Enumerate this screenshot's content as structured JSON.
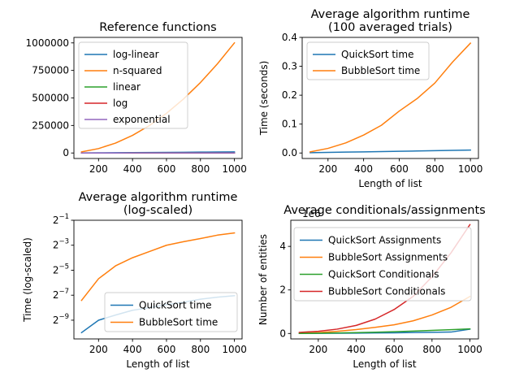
{
  "chart_data": [
    {
      "type": "line",
      "title": "Reference functions",
      "xlabel": "",
      "ylabel": "",
      "xlim": [
        55,
        1045
      ],
      "ylim": [
        -50000,
        1050000
      ],
      "xticks": [
        200,
        400,
        600,
        800,
        1000
      ],
      "xtick_labels": [
        "200",
        "400",
        "600",
        "800",
        "1000"
      ],
      "yticks": [
        0,
        250000,
        500000,
        750000,
        1000000
      ],
      "ytick_labels": [
        "0",
        "250000",
        "500000",
        "750000",
        "1000000"
      ],
      "legend": "top-left",
      "x": [
        100,
        200,
        300,
        400,
        500,
        600,
        700,
        800,
        900,
        1000
      ],
      "series": [
        {
          "name": "log-linear",
          "color": "#1f77b4",
          "values": [
            664,
            1529,
            2469,
            3458,
            4483,
            5537,
            6616,
            7715,
            8832,
            9966
          ]
        },
        {
          "name": "n-squared",
          "color": "#ff7f0e",
          "values": [
            10000,
            40000,
            90000,
            160000,
            250000,
            360000,
            490000,
            640000,
            810000,
            1000000
          ]
        },
        {
          "name": "linear",
          "color": "#2ca02c",
          "values": [
            100,
            200,
            300,
            400,
            500,
            600,
            700,
            800,
            900,
            1000
          ]
        },
        {
          "name": "log",
          "color": "#d62728",
          "values": [
            6.6,
            7.6,
            8.2,
            8.6,
            9.0,
            9.2,
            9.5,
            9.6,
            9.8,
            10.0
          ]
        },
        {
          "name": "exponential",
          "color": "#9467bd",
          "values": [
            100,
            200,
            300,
            400,
            500,
            600,
            700,
            800,
            900,
            1000
          ]
        }
      ]
    },
    {
      "type": "line",
      "title": "Average algorithm runtime\n(100 averaged trials)",
      "xlabel": "Length of list",
      "ylabel": "Time (seconds)",
      "xlim": [
        55,
        1045
      ],
      "ylim": [
        -0.019,
        0.4
      ],
      "xticks": [
        200,
        400,
        600,
        800,
        1000
      ],
      "xtick_labels": [
        "200",
        "400",
        "600",
        "800",
        "1000"
      ],
      "yticks": [
        0.0,
        0.1,
        0.2,
        0.3,
        0.4
      ],
      "ytick_labels": [
        "0.0",
        "0.1",
        "0.2",
        "0.3",
        "0.4"
      ],
      "legend": "top-left",
      "x": [
        100,
        200,
        300,
        400,
        500,
        600,
        700,
        800,
        900,
        1000
      ],
      "series": [
        {
          "name": "QuickSort time",
          "color": "#1f77b4",
          "values": [
            0.001,
            0.002,
            0.003,
            0.004,
            0.005,
            0.006,
            0.007,
            0.008,
            0.009,
            0.01
          ]
        },
        {
          "name": "BubbleSort time",
          "color": "#ff7f0e",
          "values": [
            0.004,
            0.016,
            0.035,
            0.062,
            0.096,
            0.145,
            0.188,
            0.242,
            0.315,
            0.38
          ]
        }
      ]
    },
    {
      "type": "line",
      "title": "Average algorithm runtime\n(log-scaled)",
      "xlabel": "Length of list",
      "ylabel": "Time (log-scaled)",
      "yscale": "log2",
      "xlim": [
        55,
        1045
      ],
      "ylim_log2": [
        -10.5,
        -1.0
      ],
      "xticks": [
        200,
        400,
        600,
        800,
        1000
      ],
      "xtick_labels": [
        "200",
        "400",
        "600",
        "800",
        "1000"
      ],
      "yticks_exponents": [
        -9,
        -7,
        -5,
        -3,
        -1
      ],
      "ytick_base": "2",
      "ytick_exponent_labels": [
        "−9",
        "−7",
        "−5",
        "−3",
        "−1"
      ],
      "legend": "bottom-right",
      "x": [
        100,
        200,
        300,
        400,
        500,
        600,
        700,
        800,
        900,
        1000
      ],
      "series": [
        {
          "name": "QuickSort time",
          "color": "#1f77b4",
          "values": [
            0.00098,
            0.00195,
            0.0026,
            0.00339,
            0.00391,
            0.00463,
            0.0053,
            0.00625,
            0.007,
            0.0076
          ]
        },
        {
          "name": "BubbleSort time",
          "color": "#ff7f0e",
          "values": [
            0.00586,
            0.0195,
            0.0398,
            0.0625,
            0.0884,
            0.125,
            0.152,
            0.181,
            0.219,
            0.248
          ]
        }
      ]
    },
    {
      "type": "line",
      "title": "Average conditionals/assignments",
      "xlabel": "Length of list",
      "ylabel": "Number of entities",
      "offset_text": "1e6",
      "xlim": [
        55,
        1045
      ],
      "ylim": [
        -0.25,
        5.2
      ],
      "xticks": [
        200,
        400,
        600,
        800,
        1000
      ],
      "xtick_labels": [
        "200",
        "400",
        "600",
        "800",
        "1000"
      ],
      "yticks": [
        0,
        2,
        4
      ],
      "ytick_labels": [
        "0",
        "2",
        "4"
      ],
      "legend": "top-left",
      "x": [
        100,
        200,
        300,
        400,
        500,
        600,
        700,
        800,
        900,
        1000
      ],
      "series": [
        {
          "name": "QuickSort Assignments",
          "color": "#1f77b4",
          "values": [
            0.002,
            0.006,
            0.011,
            0.017,
            0.024,
            0.032,
            0.042,
            0.052,
            0.065,
            0.2
          ]
        },
        {
          "name": "BubbleSort Assignments",
          "color": "#ff7f0e",
          "values": [
            0.01,
            0.04,
            0.1,
            0.18,
            0.28,
            0.4,
            0.58,
            0.85,
            1.2,
            1.7
          ]
        },
        {
          "name": "QuickSort Conditionals",
          "color": "#2ca02c",
          "values": [
            0.004,
            0.012,
            0.025,
            0.04,
            0.06,
            0.083,
            0.11,
            0.14,
            0.175,
            0.21
          ]
        },
        {
          "name": "BubbleSort Conditionals",
          "color": "#d62728",
          "values": [
            0.05,
            0.1,
            0.2,
            0.37,
            0.66,
            1.1,
            1.7,
            2.6,
            3.7,
            5.0
          ]
        }
      ]
    }
  ]
}
